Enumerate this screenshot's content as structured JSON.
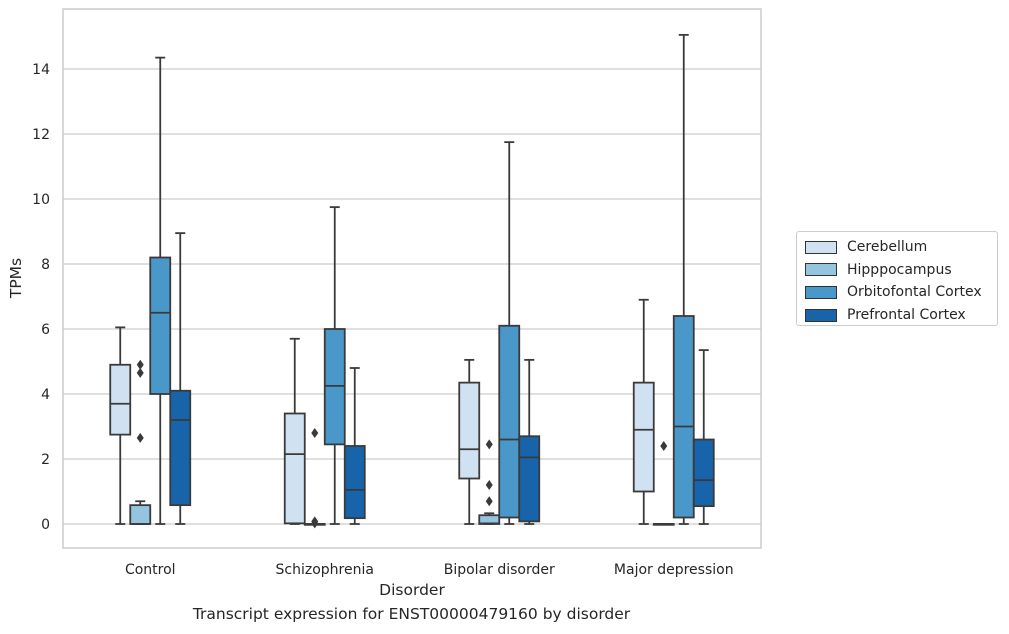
{
  "caption": "Transcript expression for ENST00000479160 by disorder",
  "chart_data": {
    "type": "boxplot",
    "xlabel": "Disorder",
    "ylabel": "TPMs",
    "ylim": [
      -0.7,
      15.8
    ],
    "yticks": [
      0,
      2,
      4,
      6,
      8,
      10,
      12,
      14
    ],
    "grid": "horizontal",
    "legend_placement": "right, outside plot",
    "categories": [
      "Control",
      "Schizophrenia",
      "Bipolar disorder",
      "Major depression"
    ],
    "series": [
      {
        "name": "Cerebellum",
        "color": "#d0e1f2",
        "boxes": [
          {
            "whisker_low": 0,
            "q1": 2.75,
            "median": 3.7,
            "q3": 4.9,
            "whisker_high": 6.05,
            "outliers": []
          },
          {
            "whisker_low": 0,
            "q1": 0.02,
            "median": 2.15,
            "q3": 3.4,
            "whisker_high": 5.7,
            "outliers": []
          },
          {
            "whisker_low": 0,
            "q1": 1.4,
            "median": 2.3,
            "q3": 4.35,
            "whisker_high": 5.05,
            "outliers": []
          },
          {
            "whisker_low": 0,
            "q1": 1.0,
            "median": 2.9,
            "q3": 4.35,
            "whisker_high": 6.9,
            "outliers": []
          }
        ]
      },
      {
        "name": "Hipppocampus",
        "color": "#94c4df",
        "boxes": [
          {
            "whisker_low": 0,
            "q1": 0,
            "median": 0,
            "q3": 0.58,
            "whisker_high": 0.7,
            "outliers": [
              2.65,
              4.65,
              4.9
            ]
          },
          {
            "whisker_low": 0,
            "q1": 0,
            "median": 0,
            "q3": 0,
            "whisker_high": 0,
            "outliers": [
              0.02,
              0.08,
              2.8
            ]
          },
          {
            "whisker_low": 0,
            "q1": 0,
            "median": 0.02,
            "q3": 0.27,
            "whisker_high": 0.33,
            "outliers": [
              0.7,
              1.2,
              2.45
            ]
          },
          {
            "whisker_low": 0,
            "q1": 0,
            "median": 0,
            "q3": 0,
            "whisker_high": 0,
            "outliers": [
              2.4
            ]
          }
        ]
      },
      {
        "name": "Orbitofontal Cortex",
        "color": "#4a98c9",
        "boxes": [
          {
            "whisker_low": 0,
            "q1": 4.0,
            "median": 6.5,
            "q3": 8.2,
            "whisker_high": 14.35,
            "outliers": []
          },
          {
            "whisker_low": 0,
            "q1": 2.45,
            "median": 4.25,
            "q3": 6.0,
            "whisker_high": 9.75,
            "outliers": []
          },
          {
            "whisker_low": 0,
            "q1": 0.2,
            "median": 2.6,
            "q3": 6.1,
            "whisker_high": 11.75,
            "outliers": []
          },
          {
            "whisker_low": 0,
            "q1": 0.2,
            "median": 3.0,
            "q3": 6.4,
            "whisker_high": 15.05,
            "outliers": []
          }
        ]
      },
      {
        "name": "Prefrontal Cortex",
        "color": "#1764ab",
        "boxes": [
          {
            "whisker_low": 0,
            "q1": 0.58,
            "median": 3.2,
            "q3": 4.1,
            "whisker_high": 8.95,
            "outliers": []
          },
          {
            "whisker_low": 0,
            "q1": 0.18,
            "median": 1.05,
            "q3": 2.4,
            "whisker_high": 4.8,
            "outliers": []
          },
          {
            "whisker_low": 0,
            "q1": 0.08,
            "median": 2.05,
            "q3": 2.7,
            "whisker_high": 5.05,
            "outliers": []
          },
          {
            "whisker_low": 0,
            "q1": 0.55,
            "median": 1.35,
            "q3": 2.6,
            "whisker_high": 5.35,
            "outliers": []
          }
        ]
      }
    ]
  }
}
